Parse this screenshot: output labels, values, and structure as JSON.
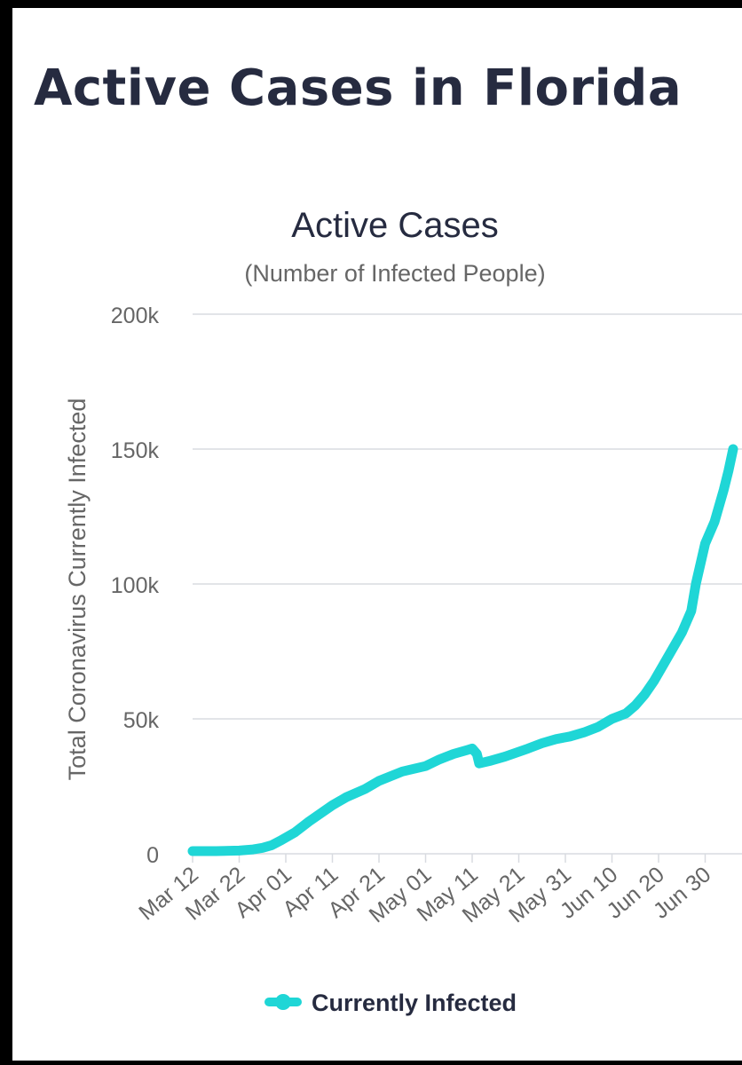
{
  "page": {
    "title": "Active Cases in Florida"
  },
  "colors": {
    "series": "#1fd6d6",
    "grid": "#d8dbe0",
    "text": "#262b40",
    "muted": "#666666"
  },
  "chart_data": {
    "type": "line",
    "title": "Active Cases",
    "subtitle": "(Number of Infected People)",
    "xlabel": "",
    "ylabel": "Total Coronavirus Currently Infected",
    "ylim": [
      0,
      200000
    ],
    "yticks": [
      0,
      50000,
      100000,
      150000,
      200000
    ],
    "ytick_labels": [
      "0",
      "50k",
      "100k",
      "150k",
      "200k"
    ],
    "grid": true,
    "legend": "bottom-center",
    "x_start": "Mar 12",
    "x_end": "Jul 1",
    "xtick_day_index": [
      0,
      10,
      20,
      30,
      40,
      50,
      60,
      70,
      80,
      90,
      100,
      110
    ],
    "xtick_labels": [
      "Mar 12",
      "Mar 22",
      "Apr 01",
      "Apr 11",
      "Apr 21",
      "May 01",
      "May 11",
      "May 21",
      "May 31",
      "Jun 10",
      "Jun 20",
      "Jun 30"
    ],
    "series": [
      {
        "name": "Currently Infected",
        "points": [
          [
            0,
            1000
          ],
          [
            5,
            1000
          ],
          [
            10,
            1200
          ],
          [
            13,
            1600
          ],
          [
            15,
            2200
          ],
          [
            17,
            3200
          ],
          [
            19,
            5000
          ],
          [
            22,
            8000
          ],
          [
            25,
            12000
          ],
          [
            30,
            18000
          ],
          [
            33,
            21000
          ],
          [
            37,
            24000
          ],
          [
            40,
            27000
          ],
          [
            45,
            30500
          ],
          [
            50,
            32500
          ],
          [
            53,
            35000
          ],
          [
            56,
            37000
          ],
          [
            59,
            38500
          ],
          [
            60,
            39000
          ],
          [
            61,
            37000
          ],
          [
            61.5,
            33500
          ],
          [
            64,
            34500
          ],
          [
            67,
            36000
          ],
          [
            72,
            39000
          ],
          [
            75,
            41000
          ],
          [
            78,
            42500
          ],
          [
            81,
            43500
          ],
          [
            84,
            45000
          ],
          [
            87,
            47000
          ],
          [
            90,
            50000
          ],
          [
            93,
            52000
          ],
          [
            95,
            55000
          ],
          [
            97,
            59000
          ],
          [
            99,
            64000
          ],
          [
            101,
            70000
          ],
          [
            103,
            76000
          ],
          [
            105,
            82000
          ],
          [
            107,
            90000
          ],
          [
            108,
            100000
          ],
          [
            110,
            115000
          ],
          [
            112,
            123000
          ],
          [
            114,
            135000
          ],
          [
            115,
            142000
          ],
          [
            116,
            150000
          ]
        ]
      }
    ]
  }
}
